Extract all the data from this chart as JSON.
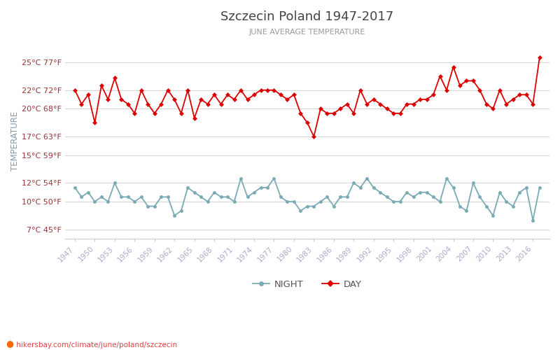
{
  "title": "Szczecin Poland 1947-2017",
  "subtitle": "JUNE AVERAGE TEMPERATURE",
  "ylabel": "TEMPERATURE",
  "xlabel_url": "hikersbay.com/climate/june/poland/szczecin",
  "legend_night": "NIGHT",
  "legend_day": "DAY",
  "years": [
    1947,
    1948,
    1949,
    1950,
    1951,
    1952,
    1953,
    1954,
    1955,
    1956,
    1957,
    1958,
    1959,
    1960,
    1961,
    1962,
    1963,
    1964,
    1965,
    1966,
    1967,
    1968,
    1969,
    1970,
    1971,
    1972,
    1973,
    1974,
    1975,
    1976,
    1977,
    1978,
    1979,
    1980,
    1981,
    1982,
    1983,
    1984,
    1985,
    1986,
    1987,
    1988,
    1989,
    1990,
    1991,
    1992,
    1993,
    1994,
    1995,
    1996,
    1997,
    1998,
    1999,
    2000,
    2001,
    2002,
    2003,
    2004,
    2005,
    2006,
    2007,
    2008,
    2009,
    2010,
    2011,
    2012,
    2013,
    2014,
    2015,
    2016,
    2017
  ],
  "day": [
    22.0,
    20.5,
    21.5,
    18.5,
    22.5,
    21.0,
    23.3,
    21.0,
    20.5,
    19.5,
    22.0,
    20.5,
    19.5,
    20.5,
    22.0,
    21.0,
    19.5,
    22.0,
    19.0,
    21.0,
    20.5,
    21.5,
    20.5,
    21.5,
    21.0,
    22.0,
    21.0,
    21.5,
    22.0,
    22.0,
    22.0,
    21.5,
    21.0,
    21.5,
    19.5,
    18.5,
    17.0,
    20.0,
    19.5,
    19.5,
    20.0,
    20.5,
    19.5,
    22.0,
    20.5,
    21.0,
    20.5,
    20.0,
    19.5,
    19.5,
    20.5,
    20.5,
    21.0,
    21.0,
    21.5,
    23.5,
    22.0,
    24.5,
    22.5,
    23.0,
    23.0,
    22.0,
    20.5,
    20.0,
    22.0,
    20.5,
    21.0,
    21.5,
    21.5,
    20.5,
    25.5
  ],
  "night": [
    11.5,
    10.5,
    11.0,
    10.0,
    10.5,
    10.0,
    12.0,
    10.5,
    10.5,
    10.0,
    10.5,
    9.5,
    9.5,
    10.5,
    10.5,
    8.5,
    9.0,
    11.5,
    11.0,
    10.5,
    10.0,
    11.0,
    10.5,
    10.5,
    10.0,
    12.5,
    10.5,
    11.0,
    11.5,
    11.5,
    12.5,
    10.5,
    10.0,
    10.0,
    9.0,
    9.5,
    9.5,
    10.0,
    10.5,
    9.5,
    10.5,
    10.5,
    12.0,
    11.5,
    12.5,
    11.5,
    11.0,
    10.5,
    10.0,
    10.0,
    11.0,
    10.5,
    11.0,
    11.0,
    10.5,
    10.0,
    12.5,
    11.5,
    9.5,
    9.0,
    12.0,
    10.5,
    9.5,
    8.5,
    11.0,
    10.0,
    9.5,
    11.0,
    11.5,
    8.0,
    11.5
  ],
  "day_color": "#dd0000",
  "night_color": "#7aabb5",
  "bg_color": "#ffffff",
  "grid_color": "#d8d8d8",
  "yticks_c": [
    7,
    10,
    12,
    15,
    17,
    20,
    22,
    25
  ],
  "yticks_f": [
    45,
    50,
    54,
    59,
    63,
    68,
    72,
    77
  ],
  "ylim": [
    6.0,
    27.0
  ],
  "title_color": "#444444",
  "subtitle_color": "#999999",
  "ylabel_color": "#8899aa",
  "tick_label_color": "#993333",
  "xtick_color": "#aaaacc",
  "url_color": "#dd4444",
  "url_dot_color": "#ff6600"
}
